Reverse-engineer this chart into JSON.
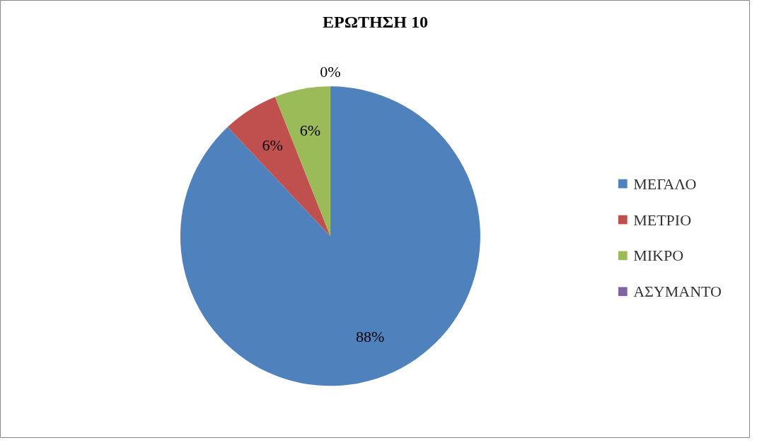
{
  "chart_data": {
    "type": "pie",
    "title": "ΕΡΩΤΗΣΗ 10",
    "categories": [
      "ΜΕΓΑΛΟ",
      "ΜΕΤΡΙΟ",
      "ΜΙΚΡΟ",
      "ΑΣΥΜΑΝΤΟ"
    ],
    "values": [
      88,
      6,
      6,
      0
    ],
    "colors": [
      "#4f81bd",
      "#c0504d",
      "#9bbb59",
      "#8064a2"
    ],
    "value_labels": [
      "88%",
      "6%",
      "6%",
      "0%"
    ],
    "legend": "right"
  }
}
